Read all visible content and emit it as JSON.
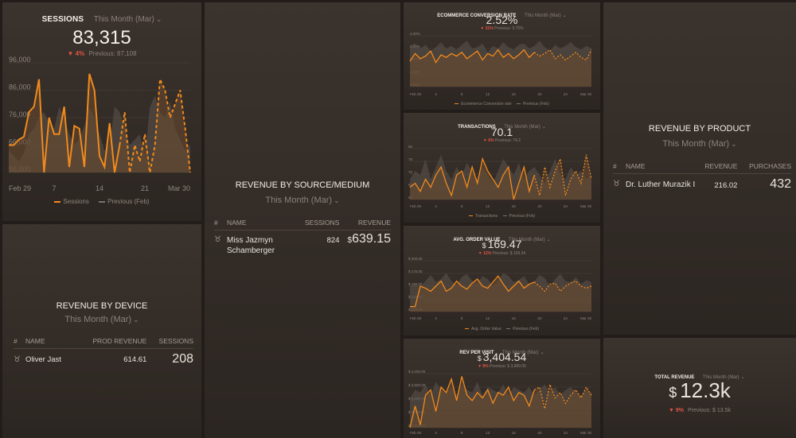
{
  "colors": {
    "accent": "#f18a1c",
    "previous": "#7b726b",
    "negative": "#e05545"
  },
  "sessions": {
    "title": "Sessions",
    "period": "This Month (Mar)",
    "value": "83,315",
    "change": "4%",
    "previous": "Previous: 87,108",
    "legend_current": "Sessions",
    "legend_previous": "Previous (Feb)",
    "chart_data": {
      "type": "line",
      "y_ticks": [
        "96,000",
        "86,000",
        "76,000",
        "66,000",
        "56,000"
      ],
      "ylim": [
        56000,
        96000
      ],
      "x_ticks": [
        "Feb 29",
        "7",
        "14",
        "21",
        "Mar 30"
      ],
      "series": [
        {
          "name": "Sessions",
          "values": [
            66000,
            66000,
            68000,
            69000,
            78000,
            80000,
            90000,
            56000,
            76000,
            70000,
            70000,
            80000,
            58000,
            73000,
            72000,
            58000,
            92000,
            86000,
            62000,
            58000,
            74000,
            56000,
            66000,
            78000,
            56000,
            66000,
            60000,
            70000,
            56000,
            66000,
            90000,
            86000,
            76000,
            81000,
            86000,
            72000,
            56000
          ]
        },
        {
          "name": "Previous (Feb)",
          "values": [
            64000,
            62000,
            60000,
            63000,
            70000,
            72000,
            76000,
            78000,
            74000,
            72000,
            80000,
            76000,
            70000,
            66000,
            68000,
            73000,
            80000,
            76000,
            70000,
            64000,
            66000,
            80000,
            78000,
            72000,
            66000,
            68000,
            70000,
            62000,
            80000,
            84000,
            78000,
            76000,
            82000,
            72000,
            68000,
            64000,
            66000
          ]
        }
      ],
      "dashed_from_index": 22
    }
  },
  "device": {
    "title": "Revenue by Device",
    "period": "This Month (Mar)",
    "headers": [
      "#",
      "Name",
      "Prod Revenue",
      "Sessions"
    ],
    "rows": [
      {
        "name": "Oliver Jast",
        "revenue": "614.61",
        "sessions": "208"
      }
    ]
  },
  "source": {
    "title": "Revenue by Source/Medium",
    "period": "This Month (Mar)",
    "headers": [
      "#",
      "Name",
      "Sessions",
      "Revenue"
    ],
    "rows": [
      {
        "name": "Miss Jazmyn Schamberger",
        "sessions": "824",
        "currency": "$",
        "revenue": "639.15"
      }
    ]
  },
  "conversion": {
    "title": "Ecommerce Conversion Rate",
    "period": "This Month (Mar)",
    "value": "2.52%",
    "change": "31%",
    "previous": "Previous: 3.75%",
    "legend_current": "Ecommerce Conversion rate",
    "legend_previous": "Previous (Feb)",
    "chart_data": {
      "type": "line",
      "y_ticks": [
        "4.00%",
        "3.00%",
        "2.00%",
        "1.00%",
        "0.00%"
      ],
      "ylim": [
        0,
        4
      ],
      "x_ticks": [
        "Feb 29",
        "4",
        "8",
        "12",
        "16",
        "20",
        "24",
        "Mar 30"
      ],
      "series": [
        {
          "name": "Ecommerce Conversion rate",
          "values": [
            2.0,
            2.6,
            2.2,
            2.4,
            2.8,
            1.9,
            2.5,
            2.3,
            2.6,
            2.4,
            2.7,
            2.2,
            2.5,
            2.8,
            2.1,
            2.6,
            2.4,
            2.9,
            2.3,
            2.6,
            2.2,
            2.5,
            2.9,
            2.3,
            2.7,
            2.4,
            2.6,
            2.9,
            2.2,
            2.5,
            2.1,
            2.4,
            2.7,
            2.3,
            2.1,
            2.9
          ]
        },
        {
          "name": "Previous (Feb)",
          "values": [
            3.2,
            3.4,
            3.0,
            3.3,
            2.8,
            3.1,
            3.5,
            3.0,
            3.2,
            2.9,
            3.3,
            3.6,
            3.0,
            3.1,
            3.4,
            2.7,
            3.2,
            3.0,
            3.5,
            3.1,
            2.9,
            3.3,
            3.4,
            3.0,
            3.2,
            3.6,
            3.1,
            2.8,
            3.3,
            3.0,
            3.2,
            3.5,
            3.1,
            2.9,
            3.2,
            3.0
          ]
        }
      ],
      "dashed_from_index": 24
    }
  },
  "transactions": {
    "title": "Transactions",
    "period": "This Month (Mar)",
    "value": "70.1",
    "change": "6%",
    "previous": "Previous: 74.2",
    "legend_current": "Transactions",
    "legend_previous": "Previous (Feb)",
    "chart_data": {
      "type": "line",
      "y_ticks": [
        "85",
        "76",
        "70",
        "65",
        "60"
      ],
      "ylim": [
        60,
        85
      ],
      "x_ticks": [
        "Feb 29",
        "4",
        "8",
        "12",
        "16",
        "20",
        "24",
        "Mar 30"
      ],
      "series": [
        {
          "name": "Transactions",
          "values": [
            66,
            68,
            64,
            70,
            66,
            72,
            76,
            68,
            62,
            72,
            74,
            66,
            76,
            68,
            80,
            74,
            70,
            66,
            72,
            76,
            60,
            68,
            76,
            64,
            72,
            62,
            76,
            66,
            74,
            80,
            62,
            70,
            74,
            68,
            82,
            70
          ]
        },
        {
          "name": "Previous (Feb)",
          "values": [
            70,
            74,
            72,
            80,
            70,
            76,
            82,
            74,
            70,
            76,
            72,
            78,
            74,
            70,
            76,
            72,
            68,
            74,
            80,
            76,
            72,
            78,
            70,
            74,
            76,
            72,
            68,
            74,
            80,
            72,
            70,
            76,
            72,
            74,
            70,
            72
          ]
        }
      ],
      "dashed_from_index": 24
    }
  },
  "aov": {
    "title": "Avg. Order Value",
    "period": "This Month (Mar)",
    "currency": "$",
    "value": "169.47",
    "change": "12%",
    "previous": "Previous: $ 193.34",
    "legend_current": "Avg. Order Value",
    "legend_previous": "Previous (Feb)",
    "chart_data": {
      "type": "line",
      "y_ticks": [
        "$ 200.00",
        "$ 175.00",
        "$ 150.00",
        "$ 125.00",
        "$ 100.00"
      ],
      "ylim": [
        100,
        200
      ],
      "x_ticks": [
        "Feb 29",
        "4",
        "8",
        "12",
        "16",
        "20",
        "24",
        "Mar 30"
      ],
      "series": [
        {
          "name": "Avg. Order Value",
          "values": [
            110,
            110,
            150,
            146,
            140,
            150,
            160,
            140,
            146,
            160,
            150,
            144,
            156,
            164,
            150,
            146,
            158,
            170,
            154,
            140,
            150,
            160,
            146,
            154,
            158,
            150,
            140,
            154,
            156,
            140,
            150,
            156,
            160,
            150,
            146,
            150
          ]
        },
        {
          "name": "Previous (Feb)",
          "values": [
            150,
            156,
            148,
            160,
            172,
            158,
            164,
            176,
            160,
            152,
            168,
            174,
            160,
            156,
            170,
            164,
            150,
            162,
            176,
            170,
            158,
            162,
            170,
            154,
            160,
            172,
            166,
            150,
            164,
            174,
            160,
            158,
            168,
            154,
            162,
            158
          ]
        }
      ],
      "dashed_from_index": 24
    }
  },
  "revenue_by_product": {
    "title": "Revenue by Product",
    "period": "This Month (Mar)",
    "headers": [
      "#",
      "Name",
      "Revenue",
      "Purchases"
    ],
    "rows": [
      {
        "name": "Dr. Luther Murazik I",
        "revenue": "216.02",
        "purchases": "432"
      }
    ]
  },
  "rev_per_visit": {
    "title": "Rev per Visit",
    "period": "This Month (Mar)",
    "currency": "$",
    "value": "3,404.54",
    "change": "8%",
    "previous": "Previous: $ 3,689.05",
    "chart_data": {
      "type": "line",
      "y_ticks": [
        "$ 4,000.00",
        "$ 3,500.00",
        "$ 3,000.00",
        "$ 2,500.00",
        "$ 2,000.00"
      ],
      "ylim": [
        2000,
        4000
      ],
      "x_ticks": [
        "Feb 29",
        "4",
        "8",
        "12",
        "16",
        "20",
        "24",
        "Mar 30"
      ],
      "series": [
        {
          "name": "Rev per Visit",
          "values": [
            2000,
            2800,
            2100,
            3200,
            3400,
            2600,
            3500,
            3300,
            3800,
            3000,
            3900,
            3200,
            3000,
            3300,
            3100,
            3400,
            2900,
            3300,
            3200,
            3500,
            3000,
            3300,
            3200,
            2800,
            3400,
            3500,
            2700,
            3600,
            3100,
            3300,
            2900,
            3200,
            3400,
            3100,
            3500,
            3200
          ]
        },
        {
          "name": "Previous (Feb)",
          "values": [
            3100,
            3400,
            3300,
            3600,
            3200,
            3700,
            3400,
            3300,
            3500,
            3200,
            3600,
            3400,
            3300,
            3700,
            3200,
            3500,
            3400,
            3300,
            3600,
            3200,
            3500,
            3400,
            3300,
            3500,
            3200,
            3400,
            3600,
            3300,
            3500,
            3200,
            3400,
            3500,
            3300,
            3200,
            3400,
            3300
          ]
        }
      ],
      "dashed_from_index": 24
    }
  },
  "total_revenue": {
    "title": "Total Revenue",
    "period": "This Month (Mar)",
    "currency": "$",
    "value": "12.3k",
    "change": "9%",
    "previous": "Previous: $ 13.5k"
  }
}
